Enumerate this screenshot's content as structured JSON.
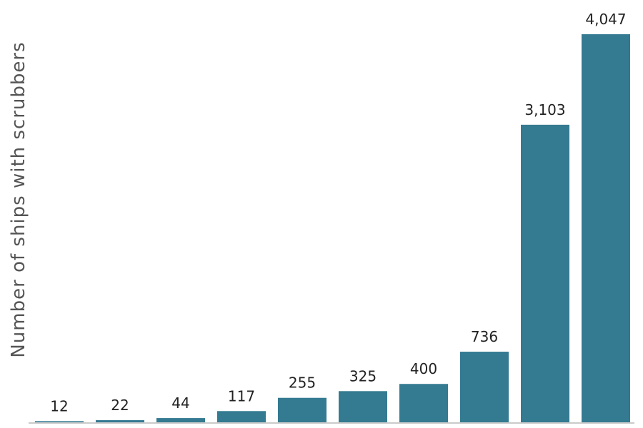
{
  "chart_data": {
    "type": "bar",
    "ylabel": "Number of ships with scrubbers",
    "xlabel": "",
    "values": [
      12,
      22,
      44,
      117,
      255,
      325,
      400,
      736,
      3103,
      4047
    ],
    "value_labels": [
      "12",
      "22",
      "44",
      "117",
      "255",
      "325",
      "400",
      "736",
      "3,103",
      "4,047"
    ],
    "ylim": [
      0,
      4270
    ],
    "grid": false,
    "bar_color": "#347a91"
  }
}
